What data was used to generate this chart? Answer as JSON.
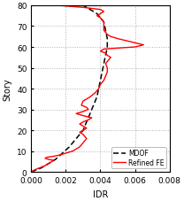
{
  "title": "",
  "xlabel": "IDR",
  "ylabel": "Story",
  "xlim": [
    0.0,
    0.008
  ],
  "ylim": [
    0,
    80
  ],
  "yticks": [
    0,
    10,
    20,
    30,
    40,
    50,
    60,
    70,
    80
  ],
  "xticks": [
    0.0,
    0.002,
    0.004,
    0.006,
    0.008
  ],
  "background_color": "#ffffff",
  "grid_color": "#b0b0b0",
  "mdof_color": "#000000",
  "refined_color": "#ff0000",
  "mdof_label": "MDOF",
  "refined_label": "Refined FE",
  "mdof_data": [
    [
      0.0,
      0
    ],
    [
      0.0003,
      1
    ],
    [
      0.0006,
      2
    ],
    [
      0.001,
      4
    ],
    [
      0.0014,
      6
    ],
    [
      0.0018,
      9
    ],
    [
      0.0022,
      12
    ],
    [
      0.0026,
      16
    ],
    [
      0.003,
      20
    ],
    [
      0.0032,
      24
    ],
    [
      0.0034,
      28
    ],
    [
      0.0036,
      32
    ],
    [
      0.0038,
      36
    ],
    [
      0.0039,
      40
    ],
    [
      0.004,
      44
    ],
    [
      0.0041,
      48
    ],
    [
      0.0042,
      52
    ],
    [
      0.0043,
      56
    ],
    [
      0.0044,
      60
    ],
    [
      0.0044,
      64
    ],
    [
      0.0043,
      68
    ],
    [
      0.0042,
      72
    ],
    [
      0.0038,
      76
    ],
    [
      0.003,
      80
    ]
  ],
  "refined_data": [
    [
      0.0,
      0
    ],
    [
      0.0002,
      1
    ],
    [
      0.0005,
      2
    ],
    [
      0.0008,
      3
    ],
    [
      0.001,
      4
    ],
    [
      0.0012,
      5
    ],
    [
      0.0013,
      5.5
    ],
    [
      0.001,
      6
    ],
    [
      0.0008,
      6.5
    ],
    [
      0.0009,
      7
    ],
    [
      0.0013,
      7.5
    ],
    [
      0.0016,
      8
    ],
    [
      0.002,
      9
    ],
    [
      0.0024,
      10
    ],
    [
      0.0028,
      12
    ],
    [
      0.003,
      14
    ],
    [
      0.0032,
      16
    ],
    [
      0.003,
      18
    ],
    [
      0.0028,
      19
    ],
    [
      0.003,
      20
    ],
    [
      0.0032,
      21
    ],
    [
      0.003,
      22
    ],
    [
      0.0028,
      23
    ],
    [
      0.003,
      24
    ],
    [
      0.0033,
      25
    ],
    [
      0.0035,
      26
    ],
    [
      0.003,
      27
    ],
    [
      0.0026,
      28
    ],
    [
      0.003,
      29
    ],
    [
      0.0033,
      30
    ],
    [
      0.0032,
      31
    ],
    [
      0.0029,
      32
    ],
    [
      0.003,
      34
    ],
    [
      0.0034,
      36
    ],
    [
      0.0037,
      38
    ],
    [
      0.0039,
      40
    ],
    [
      0.004,
      42
    ],
    [
      0.0042,
      44
    ],
    [
      0.0043,
      46
    ],
    [
      0.0044,
      48
    ],
    [
      0.0044,
      50
    ],
    [
      0.0043,
      52
    ],
    [
      0.0045,
      54
    ],
    [
      0.0046,
      55
    ],
    [
      0.0044,
      56
    ],
    [
      0.0043,
      57
    ],
    [
      0.004,
      58
    ],
    [
      0.0042,
      59
    ],
    [
      0.006,
      60
    ],
    [
      0.0065,
      61
    ],
    [
      0.006,
      62
    ],
    [
      0.0055,
      63
    ],
    [
      0.005,
      64
    ],
    [
      0.0046,
      65
    ],
    [
      0.0044,
      66
    ],
    [
      0.0043,
      67
    ],
    [
      0.0042,
      68
    ],
    [
      0.0042,
      70
    ],
    [
      0.0042,
      72
    ],
    [
      0.004,
      74
    ],
    [
      0.0038,
      75
    ],
    [
      0.004,
      76
    ],
    [
      0.0042,
      77
    ],
    [
      0.004,
      78
    ],
    [
      0.003,
      79
    ],
    [
      0.0015,
      80
    ]
  ]
}
